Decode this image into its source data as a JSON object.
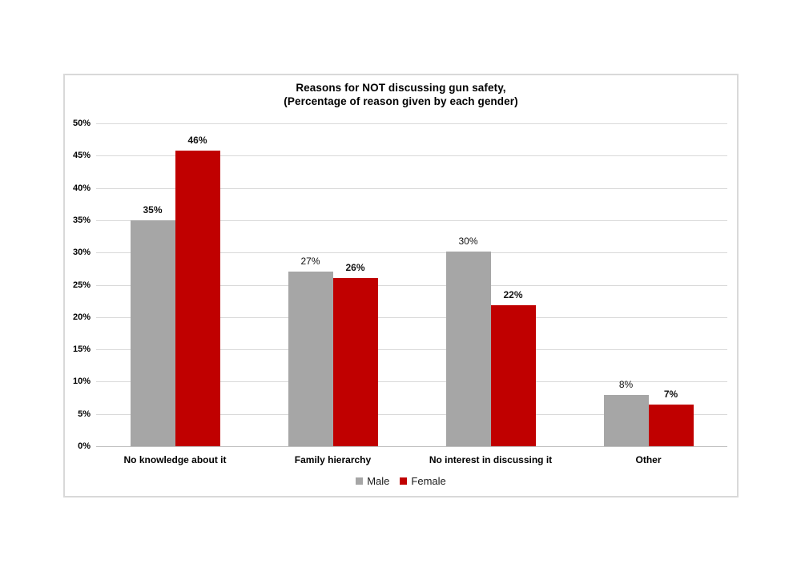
{
  "chart": {
    "title_line1": "Reasons for NOT discussing gun safety,",
    "title_line2": "(Percentage of reason given by each gender)"
  },
  "chart_data": {
    "type": "bar",
    "title": "Reasons for NOT discussing gun safety,",
    "subtitle": "(Percentage of reason given by each gender)",
    "categories": [
      "No knowledge about it",
      "Family hierarchy",
      "No interest in discussing it",
      "Other"
    ],
    "series": [
      {
        "name": "Male",
        "color": "#a6a6a6",
        "values": [
          35,
          27,
          30,
          8
        ],
        "data_labels": [
          "35%",
          "27%",
          "30%",
          "8%"
        ],
        "data_label_bold": [
          true,
          false,
          false,
          false
        ],
        "render_values": [
          35,
          27,
          30.2,
          8
        ]
      },
      {
        "name": "Female",
        "color": "#c00000",
        "values": [
          46,
          26,
          22,
          7
        ],
        "data_labels": [
          "46%",
          "26%",
          "22%",
          "7%"
        ],
        "data_label_bold": [
          true,
          true,
          true,
          true
        ],
        "render_values": [
          45.8,
          26,
          21.8,
          6.5
        ]
      }
    ],
    "xlabel": "",
    "ylabel": "",
    "ylim": [
      0,
      50
    ],
    "ytick_step": 5,
    "ytick_labels": [
      "0%",
      "5%",
      "10%",
      "15%",
      "20%",
      "25%",
      "30%",
      "35%",
      "40%",
      "45%",
      "50%"
    ],
    "grid": true,
    "legend_position": "bottom",
    "legend_entries": [
      "Male",
      "Female"
    ],
    "colors": {
      "male": "#a6a6a6",
      "female": "#c00000",
      "gridline": "#d9d9d9",
      "frame_border": "#d9d9d9"
    }
  }
}
